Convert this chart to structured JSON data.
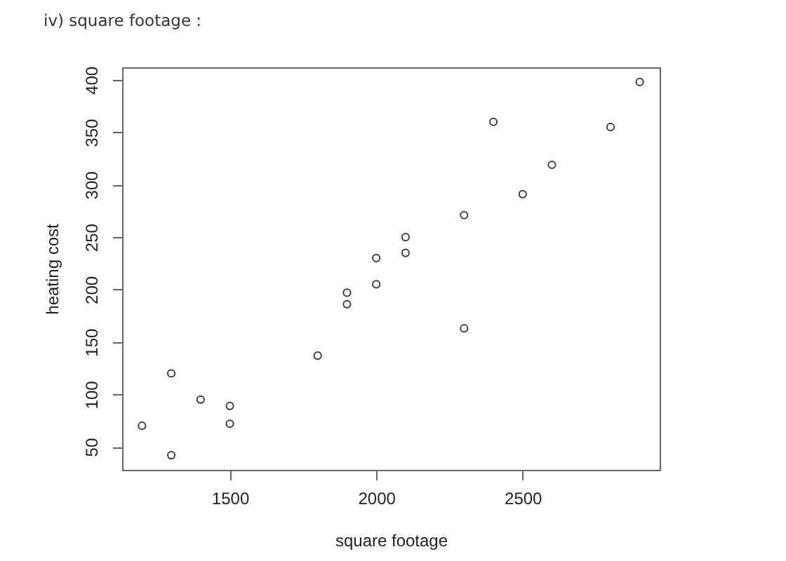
{
  "chart_data": {
    "type": "scatter",
    "title": "iv) square footage :",
    "xlabel": "square footage",
    "ylabel": "heating cost",
    "x": [
      1200,
      1300,
      1300,
      1400,
      1500,
      1500,
      1800,
      1900,
      1900,
      2000,
      2000,
      2100,
      2100,
      2300,
      2300,
      2400,
      2500,
      2600,
      2800,
      2900
    ],
    "values": [
      70,
      120,
      42,
      95,
      89,
      72,
      137,
      197,
      186,
      230,
      205,
      250,
      235,
      271,
      163,
      360,
      291,
      319,
      355,
      398
    ],
    "color": "#404040",
    "marker": "circle",
    "xlim": [
      1132,
      2968
    ],
    "ylim": [
      28,
      412
    ],
    "xticks": [
      1500,
      2000,
      2500
    ],
    "yticks": [
      50,
      100,
      150,
      200,
      250,
      300,
      350,
      400
    ],
    "grid": false
  }
}
